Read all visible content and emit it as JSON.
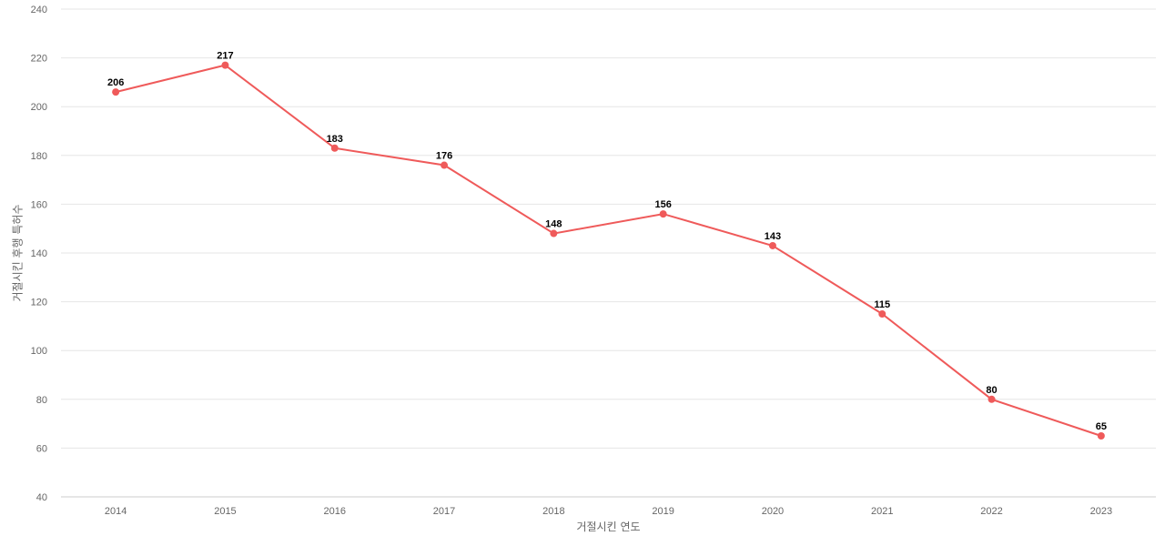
{
  "chart_data": {
    "type": "line",
    "title": "",
    "xlabel": "거절시킨 연도",
    "ylabel": "거절시킨 후행 특허수",
    "categories": [
      "2014",
      "2015",
      "2016",
      "2017",
      "2018",
      "2019",
      "2020",
      "2021",
      "2022",
      "2023"
    ],
    "series": [
      {
        "values": [
          206,
          217,
          183,
          176,
          148,
          156,
          143,
          115,
          80,
          65
        ],
        "color": "#ef5a5a"
      }
    ],
    "ylim": [
      40,
      240
    ],
    "yticks": [
      40,
      60,
      80,
      100,
      120,
      140,
      160,
      180,
      200,
      220,
      240
    ],
    "grid": true,
    "data_labels": true,
    "legend": "none"
  }
}
